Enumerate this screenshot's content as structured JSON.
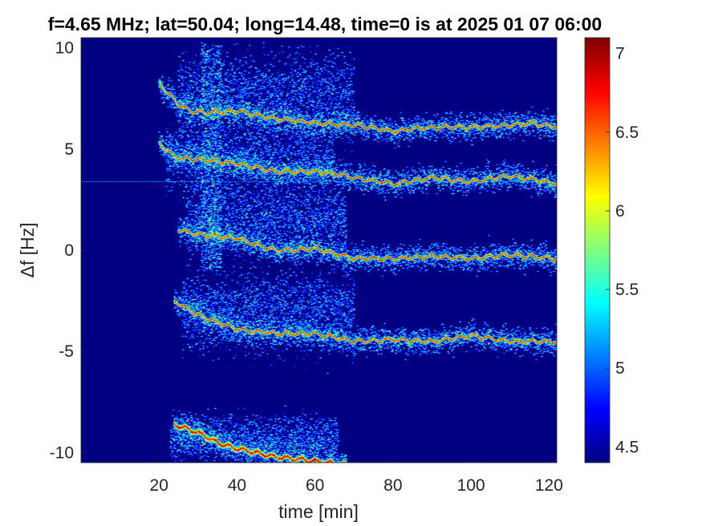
{
  "chart_data": {
    "type": "heatmap",
    "title": "f=4.65 MHz;  lat=50.04; long=14.48, time=0 is at 2025 01 07 06:00",
    "xlabel": "time [min]",
    "ylabel": "Δf [Hz]",
    "xlim": [
      0,
      122
    ],
    "ylim": [
      -10.5,
      10.5
    ],
    "xticks": [
      20,
      40,
      60,
      80,
      100,
      120
    ],
    "yticks": [
      10,
      5,
      0,
      -5,
      -10
    ],
    "colorbar": {
      "range": [
        4.4,
        7.1
      ],
      "ticks": [
        4.5,
        5,
        5.5,
        6,
        6.5,
        7
      ],
      "colormap": "jet"
    },
    "background_level": 4.4,
    "traces": [
      {
        "start": 20,
        "end": 122,
        "width": 0.1,
        "points": [
          [
            20,
            8.3
          ],
          [
            22,
            7.8
          ],
          [
            25,
            7.2
          ],
          [
            28,
            6.9
          ],
          [
            32,
            6.8
          ],
          [
            40,
            6.9
          ],
          [
            50,
            6.5
          ],
          [
            60,
            6.3
          ],
          [
            70,
            6.2
          ],
          [
            80,
            5.9
          ],
          [
            90,
            6.1
          ],
          [
            100,
            6.1
          ],
          [
            110,
            6.2
          ],
          [
            115,
            6.3
          ],
          [
            122,
            6.1
          ]
        ]
      },
      {
        "start": 20,
        "end": 122,
        "width": 0.1,
        "points": [
          [
            20,
            5.3
          ],
          [
            24,
            4.6
          ],
          [
            30,
            4.5
          ],
          [
            40,
            4.3
          ],
          [
            50,
            3.9
          ],
          [
            60,
            3.9
          ],
          [
            65,
            3.8
          ],
          [
            70,
            3.6
          ],
          [
            80,
            3.3
          ],
          [
            90,
            3.6
          ],
          [
            100,
            3.4
          ],
          [
            110,
            3.7
          ],
          [
            122,
            3.3
          ]
        ]
      },
      {
        "start": 25,
        "end": 122,
        "width": 0.1,
        "points": [
          [
            25,
            1.0
          ],
          [
            30,
            0.8
          ],
          [
            40,
            0.6
          ],
          [
            50,
            0.0
          ],
          [
            60,
            0.1
          ],
          [
            70,
            -0.4
          ],
          [
            80,
            -0.4
          ],
          [
            90,
            -0.3
          ],
          [
            100,
            -0.4
          ],
          [
            110,
            -0.2
          ],
          [
            122,
            -0.4
          ]
        ]
      },
      {
        "start": 24,
        "end": 122,
        "width": 0.1,
        "points": [
          [
            24,
            -2.5
          ],
          [
            30,
            -3.2
          ],
          [
            40,
            -3.9
          ],
          [
            50,
            -4.1
          ],
          [
            60,
            -4.1
          ],
          [
            70,
            -4.5
          ],
          [
            80,
            -4.4
          ],
          [
            90,
            -4.5
          ],
          [
            100,
            -4.2
          ],
          [
            110,
            -4.5
          ],
          [
            122,
            -4.5
          ]
        ]
      },
      {
        "start": 24,
        "end": 68,
        "width": 0.18,
        "points": [
          [
            24,
            -8.6
          ],
          [
            30,
            -9.0
          ],
          [
            35,
            -9.5
          ],
          [
            40,
            -9.8
          ],
          [
            50,
            -10.2
          ],
          [
            60,
            -10.4
          ],
          [
            68,
            -10.6
          ]
        ]
      }
    ],
    "clouds": [
      {
        "t0": 25,
        "t1": 70,
        "y": 7.6,
        "spread": 1.6,
        "density": 0.7
      },
      {
        "t0": 22,
        "t1": 65,
        "y": 4.6,
        "spread": 1.2,
        "density": 0.6
      },
      {
        "t0": 27,
        "t1": 68,
        "y": 1.6,
        "spread": 1.3,
        "density": 0.7
      },
      {
        "t0": 26,
        "t1": 70,
        "y": -3.0,
        "spread": 1.4,
        "density": 0.7
      },
      {
        "t0": 23,
        "t1": 66,
        "y": -9.3,
        "spread": 0.8,
        "density": 0.6
      }
    ],
    "spikes": [
      {
        "t0": 31,
        "t1": 36,
        "y0": -1.0,
        "y1": 10.2
      }
    ],
    "hline": {
      "y": 3.4,
      "level": 5.3
    }
  }
}
